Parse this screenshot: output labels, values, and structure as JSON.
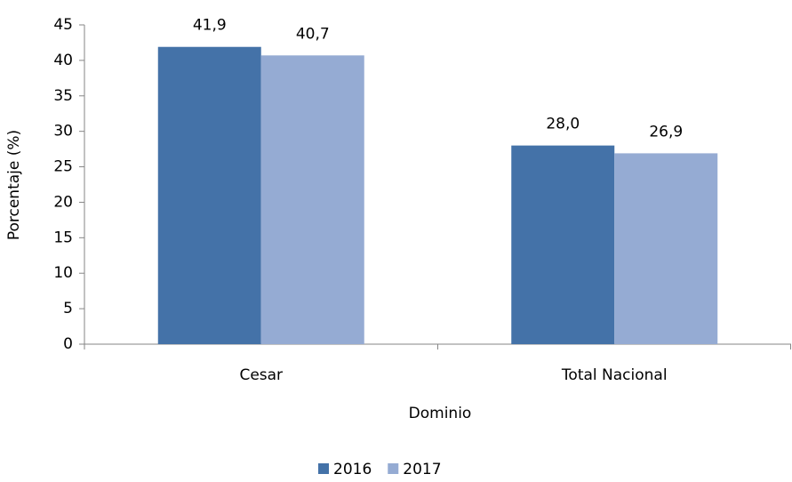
{
  "chart_data": {
    "type": "bar",
    "categories": [
      "Cesar",
      "Total Nacional"
    ],
    "series": [
      {
        "name": "2016",
        "color": "#4472a8",
        "values": [
          41.9,
          28.0
        ],
        "value_labels": [
          "41,9",
          "28,0"
        ]
      },
      {
        "name": "2017",
        "color": "#95abd3",
        "values": [
          40.7,
          26.9
        ],
        "value_labels": [
          "40,7",
          "26,9"
        ]
      }
    ],
    "ylabel": "Porcentaje (%)",
    "xlabel": "Dominio",
    "ylim": [
      0,
      45
    ],
    "yticks": [
      0,
      5,
      10,
      15,
      20,
      25,
      30,
      35,
      40,
      45
    ],
    "grid": false,
    "legend": "bottom"
  }
}
